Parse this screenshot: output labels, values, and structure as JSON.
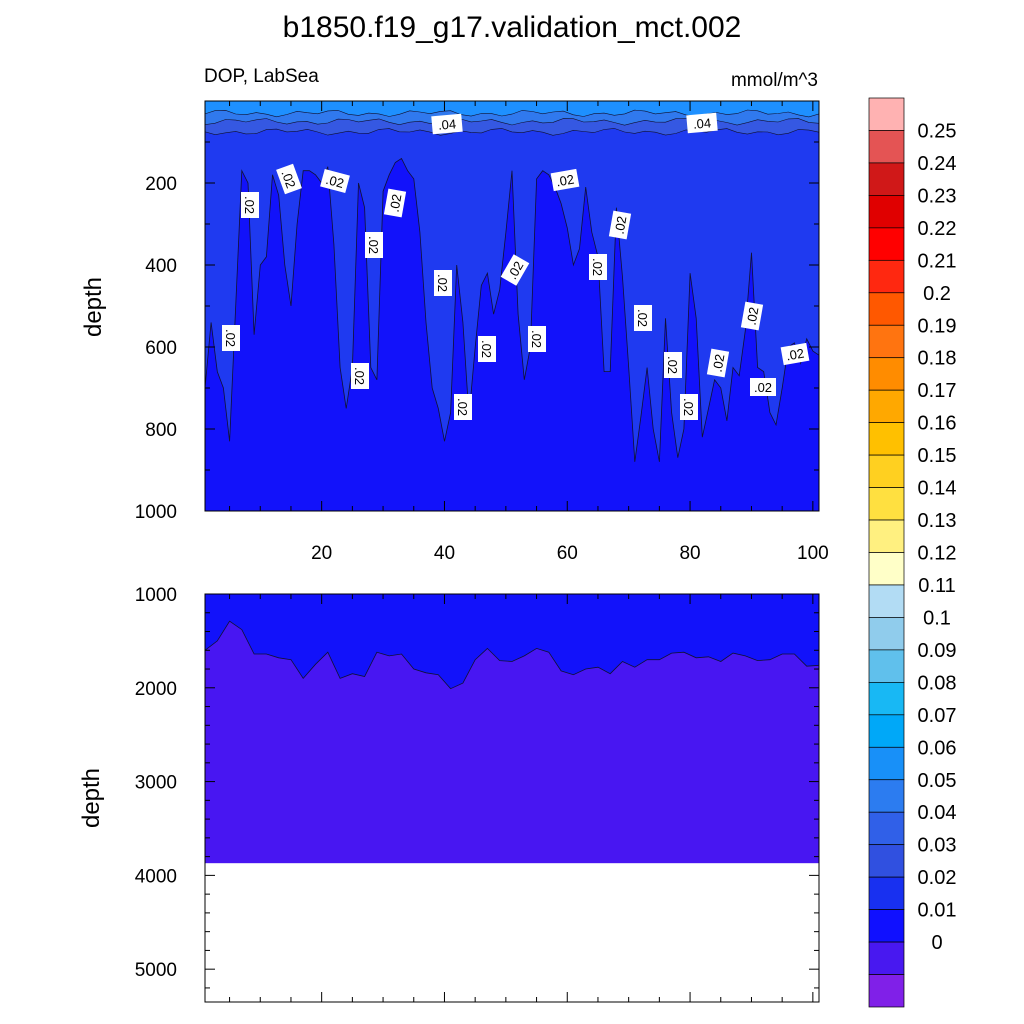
{
  "chart_data": {
    "type": "contour",
    "title": "b1850.f19_g17.validation_mct.002",
    "field": "DOP, LabSea",
    "units": "mmol/m^3",
    "ylabel": "depth",
    "xlim": [
      1,
      101
    ],
    "xticks": [
      20,
      40,
      60,
      80,
      100
    ],
    "upper_panel": {
      "ylim": [
        1000,
        0
      ],
      "yticks": [
        200,
        400,
        600,
        800,
        1000
      ],
      "contour_label": ".02",
      "contour_labels_top": [
        ".04",
        ".04"
      ],
      "surface_layers": [
        {
          "level": 0.05,
          "depth_bottom": 30
        },
        {
          "level": 0.04,
          "depth_bottom": 50
        },
        {
          "level": 0.03,
          "depth_bottom": 75
        }
      ],
      "mid_layer_level": 0.02,
      "deep_level": 0.01,
      "boundary_002_001": {
        "x": [
          1,
          2,
          3,
          4,
          5,
          6,
          7,
          8,
          9,
          10,
          11,
          12,
          13,
          14,
          15,
          16,
          17,
          18,
          19,
          20,
          21,
          22,
          23,
          24,
          25,
          26,
          27,
          28,
          29,
          30,
          31,
          32,
          33,
          34,
          35,
          36,
          37,
          38,
          39,
          40,
          41,
          42,
          43,
          44,
          45,
          46,
          47,
          48,
          49,
          50,
          51,
          52,
          53,
          54,
          55,
          56,
          57,
          58,
          59,
          60,
          61,
          62,
          63,
          64,
          65,
          66,
          67,
          68,
          69,
          70,
          71,
          72,
          73,
          74,
          75,
          76,
          77,
          78,
          79,
          80,
          81,
          82,
          83,
          84,
          85,
          86,
          87,
          88,
          89,
          90,
          91,
          92,
          93,
          94,
          95,
          96,
          97,
          98,
          99,
          100,
          101
        ],
        "depth": [
          700,
          540,
          660,
          700,
          830,
          500,
          170,
          200,
          570,
          400,
          380,
          180,
          230,
          400,
          500,
          300,
          170,
          170,
          180,
          200,
          160,
          350,
          650,
          750,
          650,
          200,
          260,
          650,
          680,
          220,
          180,
          150,
          140,
          170,
          190,
          320,
          540,
          700,
          750,
          830,
          760,
          400,
          540,
          770,
          600,
          450,
          420,
          520,
          460,
          320,
          170,
          520,
          680,
          600,
          190,
          170,
          180,
          210,
          250,
          310,
          400,
          360,
          210,
          320,
          380,
          660,
          660,
          260,
          430,
          650,
          880,
          770,
          650,
          800,
          880,
          530,
          760,
          870,
          800,
          420,
          530,
          820,
          750,
          680,
          700,
          780,
          650,
          670,
          560,
          370,
          650,
          660,
          760,
          790,
          700,
          600,
          590,
          640,
          580,
          610,
          620
        ]
      }
    },
    "lower_panel": {
      "ylim": [
        5350,
        1000
      ],
      "yticks": [
        1000,
        2000,
        3000,
        4000,
        5000
      ],
      "bottom_depth": 3870,
      "upper_level": 0.01,
      "lower_level": 0,
      "boundary_001_0": {
        "x": [
          1,
          3,
          5,
          7,
          9,
          11,
          13,
          15,
          17,
          19,
          21,
          23,
          25,
          27,
          29,
          31,
          33,
          35,
          37,
          39,
          41,
          43,
          45,
          47,
          49,
          51,
          53,
          55,
          57,
          59,
          61,
          63,
          65,
          67,
          69,
          71,
          73,
          75,
          77,
          79,
          81,
          83,
          85,
          87,
          89,
          91,
          93,
          95,
          97,
          99,
          101
        ],
        "depth": [
          1600,
          1500,
          1290,
          1380,
          1640,
          1640,
          1680,
          1700,
          1900,
          1750,
          1620,
          1900,
          1850,
          1880,
          1620,
          1660,
          1640,
          1800,
          1840,
          1860,
          2010,
          1950,
          1700,
          1580,
          1710,
          1720,
          1660,
          1580,
          1620,
          1820,
          1860,
          1800,
          1780,
          1850,
          1720,
          1780,
          1700,
          1700,
          1630,
          1620,
          1680,
          1670,
          1720,
          1630,
          1660,
          1710,
          1700,
          1640,
          1640,
          1770,
          1760
        ]
      }
    },
    "colorbar": {
      "labels": [
        "0.25",
        "0.24",
        "0.23",
        "0.22",
        "0.21",
        "0.2",
        "0.19",
        "0.18",
        "0.17",
        "0.16",
        "0.15",
        "0.14",
        "0.13",
        "0.12",
        "0.11",
        "0.1",
        "0.09",
        "0.08",
        "0.07",
        "0.06",
        "0.05",
        "0.04",
        "0.03",
        "0.02",
        "0.01",
        "0"
      ],
      "colors": [
        "#FFB2B2",
        "#E45454",
        "#D01818",
        "#E00000",
        "#FF0000",
        "#FF2810",
        "#FF5800",
        "#FF7410",
        "#FF8C00",
        "#FFA800",
        "#FFC000",
        "#FFD020",
        "#FFE040",
        "#FFF080",
        "#FFFFC8",
        "#B2DCF4",
        "#90CCEC",
        "#60C0EC",
        "#18B8F4",
        "#00A8F8",
        "#1890F8",
        "#2C7CF0",
        "#3060E8",
        "#3050E0",
        "#1830F0",
        "#1010FF",
        "#4818F0",
        "#8020E8"
      ]
    },
    "colors": {
      "lev005": "#1E90FF",
      "lev004": "#3079EE",
      "lev003": "#3558E2",
      "lev002": "#1F3AF0",
      "lev001": "#1212FA",
      "lev000": "#4816F2"
    }
  }
}
